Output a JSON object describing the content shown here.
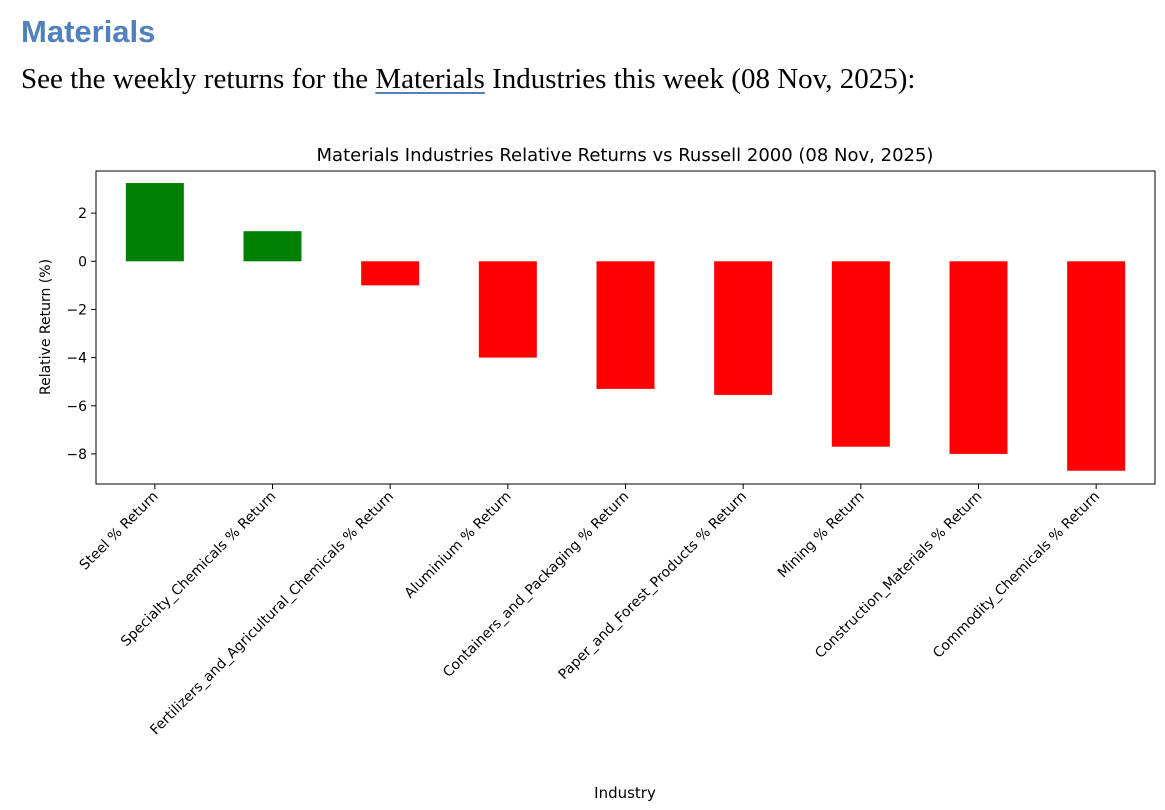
{
  "heading": "Materials",
  "intro": {
    "prefix": "See the weekly returns for the ",
    "link_text": "Materials",
    "suffix": " Industries this week (08 Nov, 2025):"
  },
  "colors": {
    "positive": "#008000",
    "negative": "#ff0000",
    "heading": "#4f81bd"
  },
  "chart_data": {
    "type": "bar",
    "title": "Materials Industries Relative Returns vs Russell 2000 (08 Nov, 2025)",
    "xlabel": "Industry",
    "ylabel": "Relative Return (%)",
    "ylim": [
      -9.25,
      3.75
    ],
    "yticks": [
      2,
      0,
      -2,
      -4,
      -6,
      -8
    ],
    "ytick_labels": [
      "2",
      "0",
      "−2",
      "−4",
      "−6",
      "−8"
    ],
    "categories": [
      "Steel % Return",
      "Specialty_Chemicals % Return",
      "Fertilizers_and_Agricultural_Chemicals % Return",
      "Aluminium % Return",
      "Containers_and_Packaging % Return",
      "Paper_and_Forest_Products % Return",
      "Mining % Return",
      "Construction_Materials % Return",
      "Commodity_Chemicals % Return"
    ],
    "values": [
      3.25,
      1.25,
      -1.0,
      -4.0,
      -5.3,
      -5.55,
      -7.7,
      -8.0,
      -8.7
    ]
  }
}
